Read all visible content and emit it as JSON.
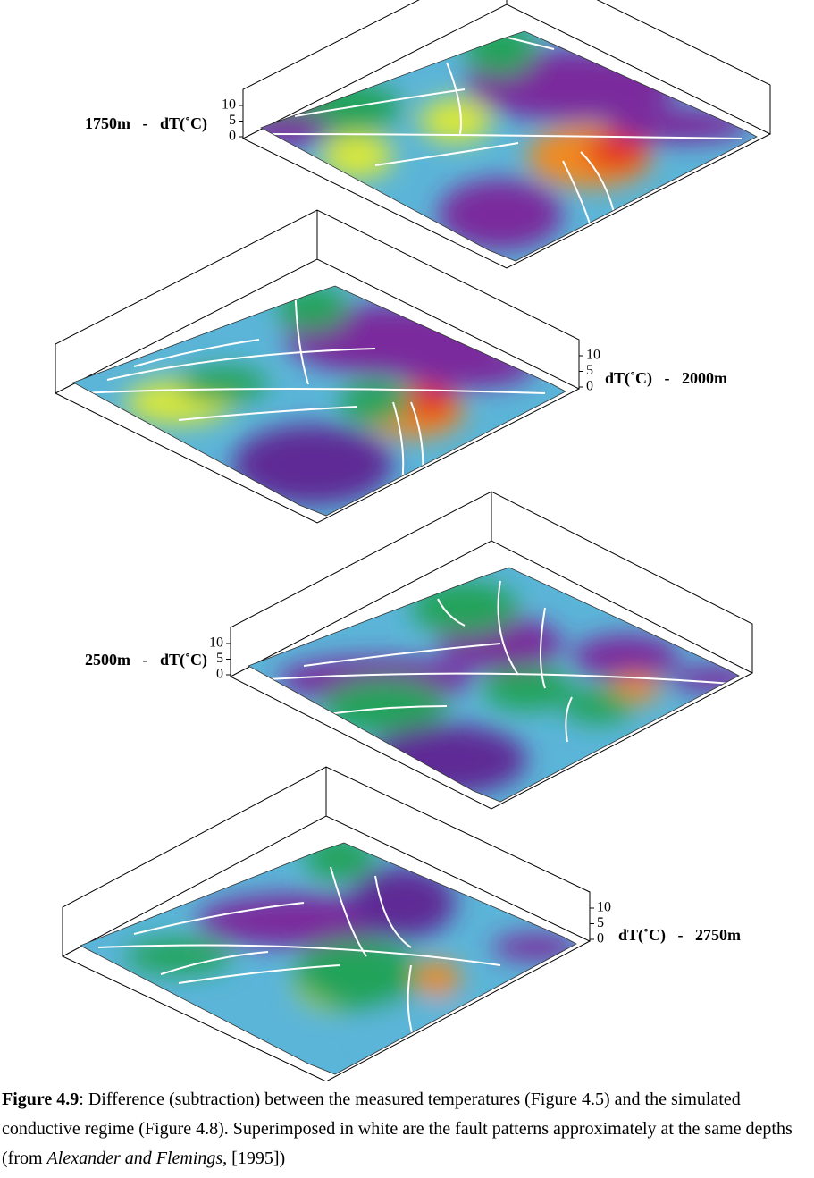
{
  "panels": [
    {
      "label": "1750m   -   dT(˚C)",
      "zticks": [
        0,
        5,
        10
      ]
    },
    {
      "label": "dT(˚C)   -   2000m",
      "zticks": [
        0,
        5,
        10
      ]
    },
    {
      "label": "2500m   -   dT(˚C)",
      "zticks": [
        0,
        5,
        10
      ]
    },
    {
      "label": "dT(˚C)   -   2750m",
      "zticks": [
        0,
        5,
        10
      ]
    }
  ],
  "caption": {
    "label": "Figure 4.9",
    "text": ": Difference (subtraction) between the measured temperatures (Figure 4.5) and the simulated conductive regime (Figure 4.8). Superimposed in white are the fault patterns approximately at the same depths (from ",
    "citation": "Alexander and Flemings",
    "tail": ", [1995])"
  }
}
